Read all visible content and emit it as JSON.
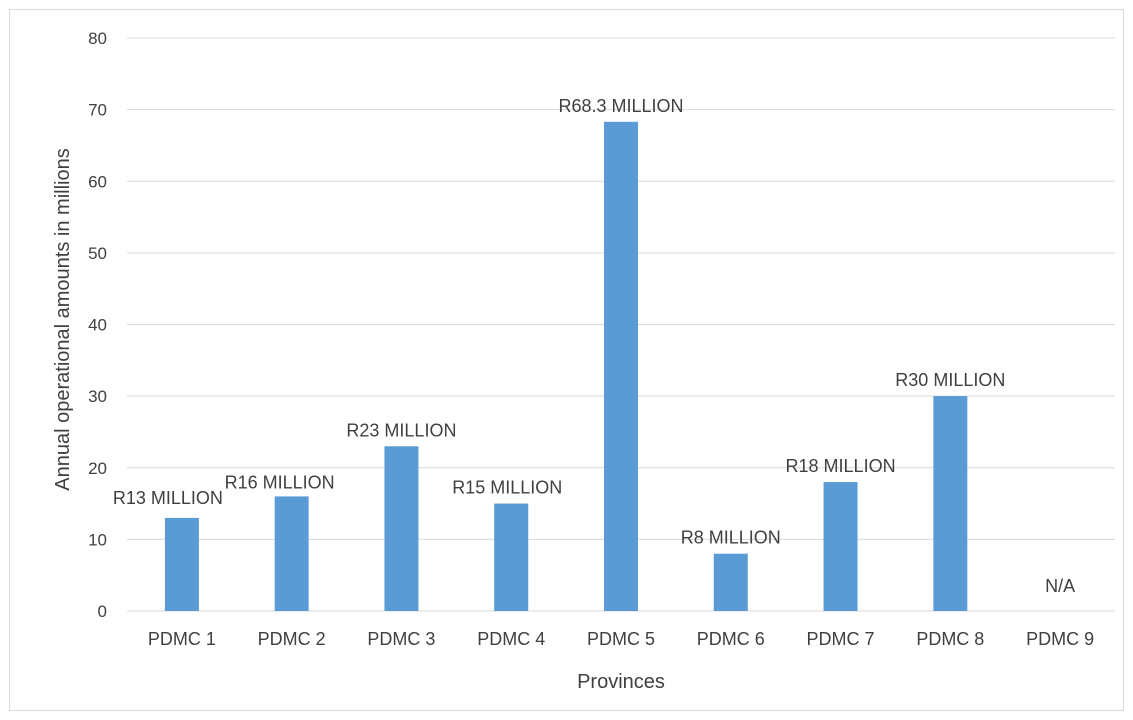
{
  "chart_data": {
    "type": "bar",
    "title": "",
    "xlabel": "Provinces",
    "ylabel": "Annual operational amounts in millions",
    "categories": [
      "PDMC 1",
      "PDMC 2",
      "PDMC 3",
      "PDMC 4",
      "PDMC 5",
      "PDMC 6",
      "PDMC 7",
      "PDMC 8",
      "PDMC 9"
    ],
    "values": [
      13,
      16,
      23,
      15,
      68.3,
      8,
      18,
      30,
      null
    ],
    "data_labels": [
      "R13 MILLION",
      "R16 MILLION",
      "R23 MILLION",
      "R15 MILLION",
      "R68.3 MILLION",
      "R8 MILLION",
      "R18 MILLION",
      "R30 MILLION",
      "N/A"
    ],
    "ylim": [
      0,
      80
    ],
    "yticks": [
      0,
      10,
      20,
      30,
      40,
      50,
      60,
      70,
      80
    ],
    "grid": true,
    "legend": "none",
    "colors": {
      "bar": "#5b9bd5",
      "grid": "#d9d9d9",
      "text": "#404040"
    }
  }
}
